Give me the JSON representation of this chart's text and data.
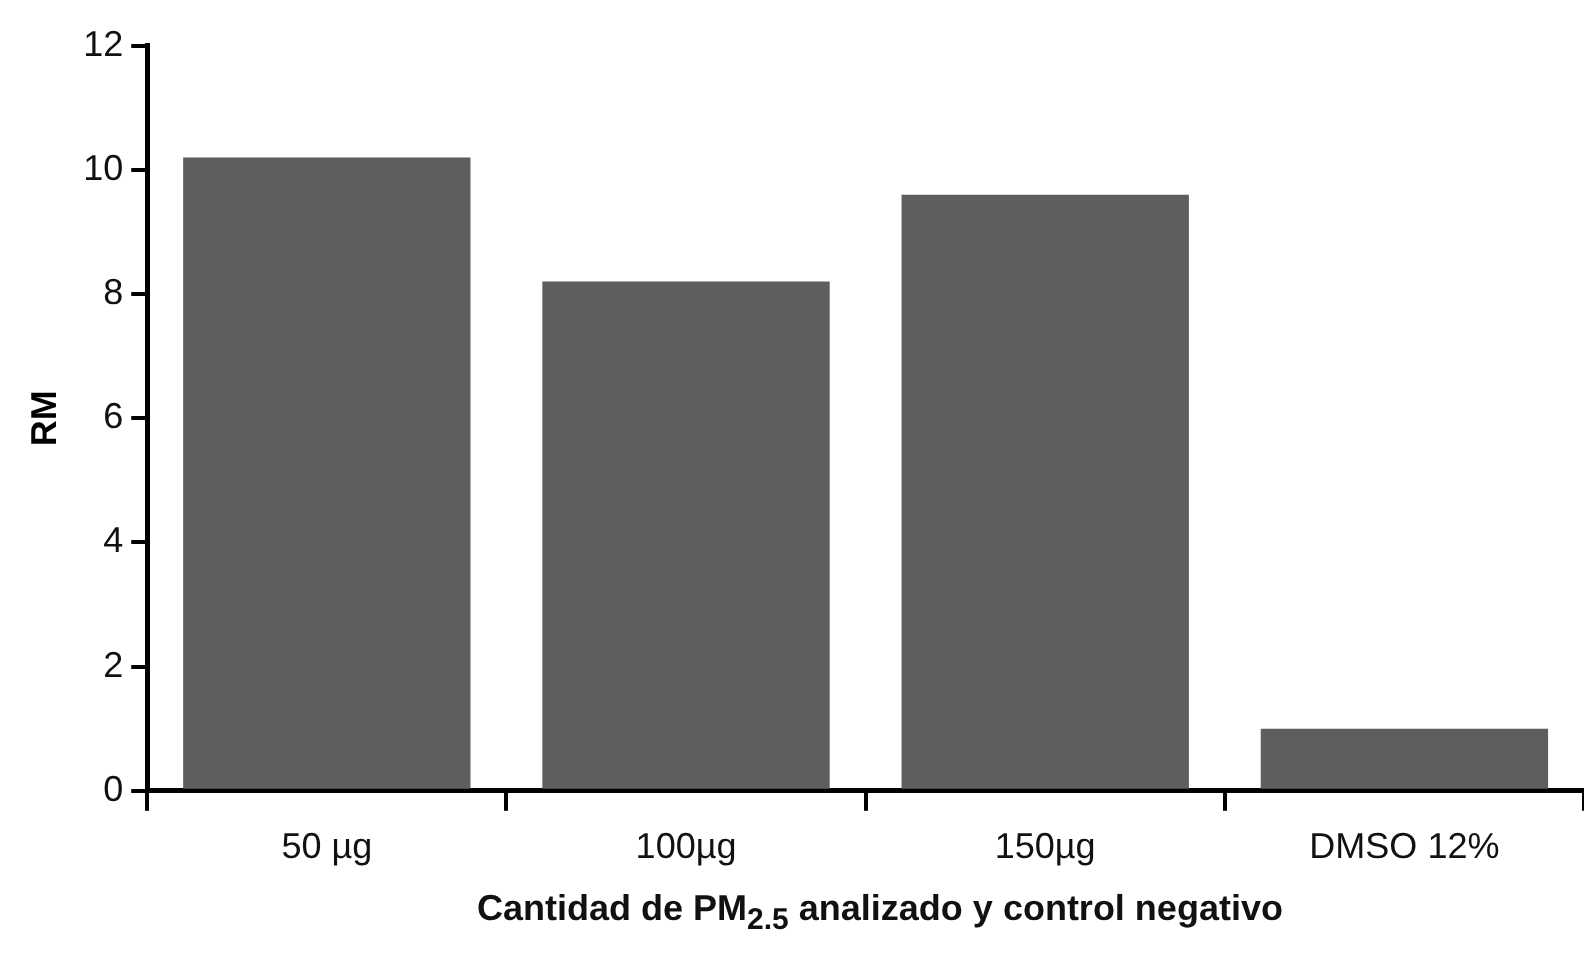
{
  "chart_data": {
    "type": "bar",
    "xlabel": "Cantidad de PM$_{2.5}$ analizado y control negativo",
    "ylabel": "RM",
    "categories": [
      "50 µg",
      "100µg",
      "150µg",
      "DMSO 12%"
    ],
    "values": [
      10.2,
      8.2,
      9.6,
      1.0
    ],
    "color": "#5e5e5e",
    "ylim": [
      0,
      12
    ],
    "yticks": [
      0,
      2,
      4,
      6,
      8,
      10,
      12
    ],
    "grid": false,
    "legend": false
  }
}
